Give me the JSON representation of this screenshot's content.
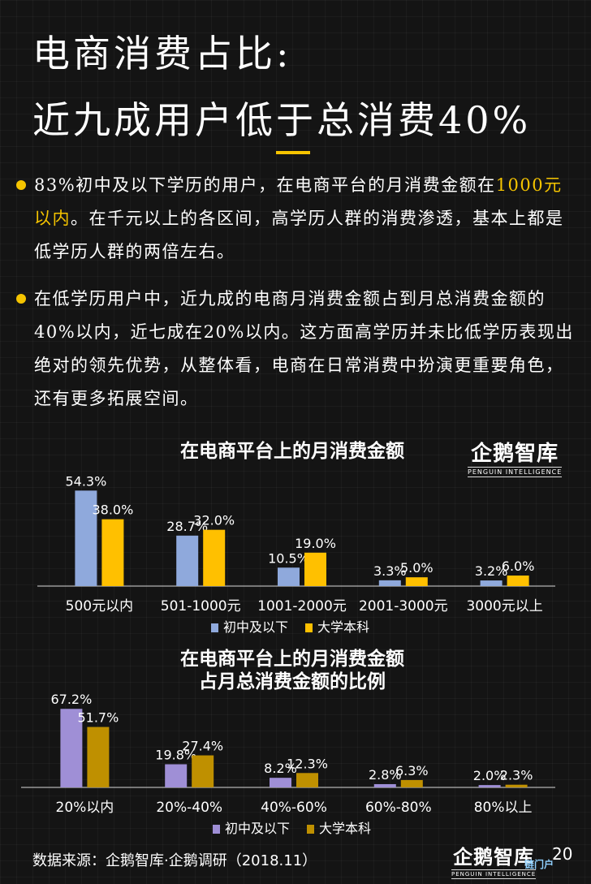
{
  "title_line1": "电商消费占比:",
  "title_line2": "近九成用户低于总消费40%",
  "bullet1": {
    "part1": "83%初中及以下学历的用户，在电商平台的月消费金额在",
    "highlight": "1000元以内",
    "part2": "。在千元以上的各区间，高学历人群的消费渗透，基本上都是低学历人群的两倍左右。"
  },
  "bullet2": "在低学历用户中，近九成的电商月消费金额占到月总消费金额的40%以内，近七成在20%以内。这方面高学历并未比低学历表现出绝对的领先优势，从整体看，电商在日常消费中扮演更重要角色，还有更多拓展空间。",
  "logo": {
    "main": "企鹅智库",
    "sub": "PENGUIN INTELLIGENCE"
  },
  "source": "数据来源：企鹅智库·企鹅调研（2018.11）",
  "page_number": "20",
  "watermark": "链门户",
  "colors": {
    "accent": "#f5c400",
    "chart1_series1": "#8fa9dc",
    "chart1_series2": "#ffc000",
    "chart2_series1": "#9f8fd6",
    "chart2_series2": "#bf9000"
  },
  "chart_data": [
    {
      "type": "bar",
      "title": "在电商平台上的月消费金额",
      "categories": [
        "500元以内",
        "501-1000元",
        "1001-2000元",
        "2001-3000元",
        "3000元以上"
      ],
      "series": [
        {
          "name": "初中及以下",
          "values": [
            54.3,
            28.7,
            10.5,
            3.3,
            3.2
          ],
          "labels": [
            "54.3%",
            "28.7%",
            "10.5%",
            "3.3%",
            "3.2%"
          ]
        },
        {
          "name": "大学本科",
          "values": [
            38.0,
            32.0,
            19.0,
            5.0,
            6.0
          ],
          "labels": [
            "38.0%",
            "32.0%",
            "19.0%",
            "5.0%",
            "6.0%"
          ]
        }
      ],
      "ylim": [
        0,
        60
      ],
      "legend": "bottom",
      "grid": false
    },
    {
      "type": "bar",
      "title": "在电商平台上的月消费金额占月总消费金额的比例",
      "title_lines": [
        "在电商平台上的月消费金额",
        "占月总消费金额的比例"
      ],
      "categories": [
        "20%以内",
        "20%-40%",
        "40%-60%",
        "60%-80%",
        "80%以上"
      ],
      "series": [
        {
          "name": "初中及以下",
          "values": [
            67.2,
            19.8,
            8.2,
            2.8,
            2.0
          ],
          "labels": [
            "67.2%",
            "19.8%",
            "8.2%",
            "2.8%",
            "2.0%"
          ]
        },
        {
          "name": "大学本科",
          "values": [
            51.7,
            27.4,
            12.3,
            6.3,
            2.3
          ],
          "labels": [
            "51.7%",
            "27.4%",
            "12.3%",
            "6.3%",
            "2.3%"
          ]
        }
      ],
      "ylim": [
        0,
        75
      ],
      "legend": "bottom",
      "grid": false
    }
  ]
}
